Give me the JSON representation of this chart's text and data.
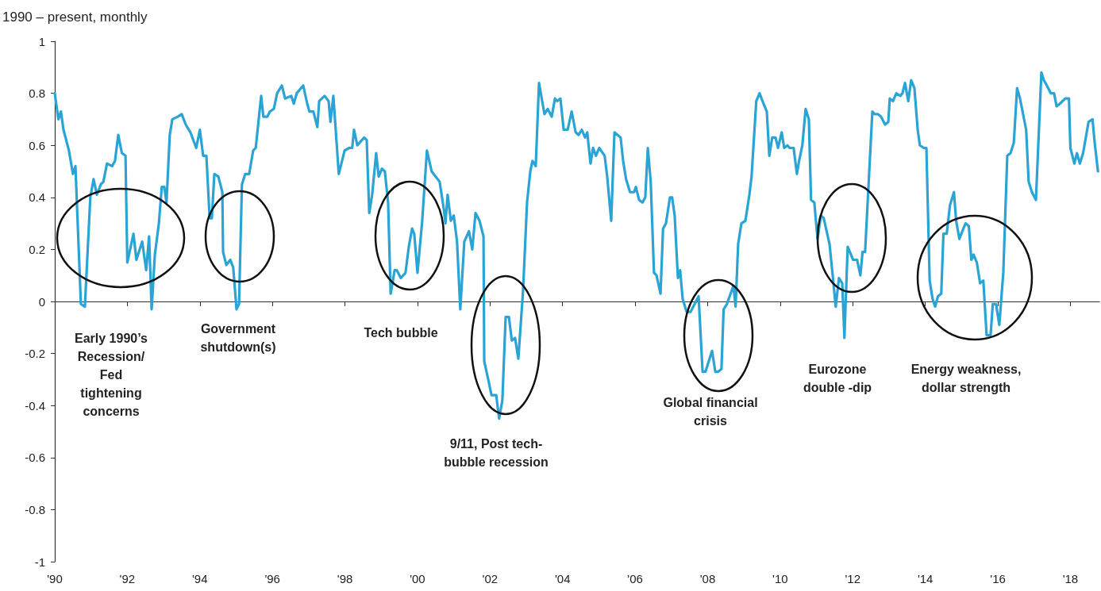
{
  "chart_data": {
    "type": "line",
    "ylabel": "1990 – present, monthly",
    "xlim": [
      1990,
      2018.8
    ],
    "ylim": [
      -1,
      1
    ],
    "xticks": [
      {
        "value": 1990,
        "label": "'90"
      },
      {
        "value": 1992,
        "label": "'92"
      },
      {
        "value": 1994,
        "label": "'94"
      },
      {
        "value": 1996,
        "label": "'96"
      },
      {
        "value": 1998,
        "label": "'98"
      },
      {
        "value": 2000,
        "label": "'00"
      },
      {
        "value": 2002,
        "label": "'02"
      },
      {
        "value": 2004,
        "label": "'04"
      },
      {
        "value": 2006,
        "label": "'06"
      },
      {
        "value": 2008,
        "label": "'08"
      },
      {
        "value": 2010,
        "label": "'10"
      },
      {
        "value": 2012,
        "label": "'12"
      },
      {
        "value": 2014,
        "label": "'14"
      },
      {
        "value": 2016,
        "label": "'16"
      },
      {
        "value": 2018,
        "label": "'18"
      }
    ],
    "yticks": [
      -1,
      -0.8,
      -0.6,
      -0.4,
      -0.2,
      0,
      0.2,
      0.4,
      0.6,
      0.8,
      1
    ],
    "marker": "none",
    "line_style": "solid",
    "series": [
      {
        "color": "#2aa4d5",
        "x": [
          1990.0,
          1990.1,
          1990.17,
          1990.24,
          1990.39,
          1990.5,
          1990.57,
          1990.72,
          1990.83,
          1990.98,
          1991.07,
          1991.16,
          1991.27,
          1991.34,
          1991.44,
          1991.58,
          1991.66,
          1991.75,
          1991.85,
          1991.95,
          1992.0,
          1992.17,
          1992.25,
          1992.41,
          1992.52,
          1992.6,
          1992.67,
          1992.76,
          1992.87,
          1992.95,
          1993.02,
          1993.08,
          1993.17,
          1993.24,
          1993.39,
          1993.5,
          1993.61,
          1993.74,
          1993.9,
          1994.0,
          1994.09,
          1994.18,
          1994.27,
          1994.33,
          1994.4,
          1994.51,
          1994.62,
          1994.64,
          1994.73,
          1994.84,
          1994.92,
          1995.01,
          1995.08,
          1995.16,
          1995.25,
          1995.36,
          1995.47,
          1995.54,
          1995.69,
          1995.75,
          1995.86,
          1995.93,
          1996.04,
          1996.13,
          1996.26,
          1996.35,
          1996.52,
          1996.59,
          1996.67,
          1996.85,
          1996.96,
          1997.02,
          1997.13,
          1997.24,
          1997.29,
          1997.44,
          1997.55,
          1997.6,
          1997.68,
          1997.83,
          1997.99,
          1998.12,
          1998.2,
          1998.25,
          1998.34,
          1998.53,
          1998.6,
          1998.67,
          1998.75,
          1998.86,
          1998.93,
          1999.02,
          1999.1,
          1999.19,
          1999.26,
          1999.37,
          1999.43,
          1999.54,
          1999.67,
          1999.76,
          1999.85,
          1999.91,
          2000.0,
          2000.13,
          2000.26,
          2000.39,
          2000.61,
          2000.72,
          2000.77,
          2000.83,
          2000.92,
          2001.0,
          2001.09,
          2001.18,
          2001.29,
          2001.42,
          2001.51,
          2001.6,
          2001.71,
          2001.82,
          2001.84,
          2001.95,
          2002.04,
          2002.17,
          2002.25,
          2002.34,
          2002.43,
          2002.52,
          2002.6,
          2002.69,
          2002.78,
          2002.91,
          2003.02,
          2003.11,
          2003.17,
          2003.26,
          2003.35,
          2003.5,
          2003.59,
          2003.7,
          2003.79,
          2003.85,
          2003.94,
          2004.03,
          2004.14,
          2004.25,
          2004.36,
          2004.44,
          2004.53,
          2004.62,
          2004.68,
          2004.77,
          2004.84,
          2004.92,
          2005.01,
          2005.16,
          2005.23,
          2005.34,
          2005.43,
          2005.6,
          2005.67,
          2005.75,
          2005.86,
          2005.97,
          2006.02,
          2006.11,
          2006.2,
          2006.28,
          2006.35,
          2006.43,
          2006.52,
          2006.59,
          2006.7,
          2006.77,
          2006.85,
          2006.96,
          2007.02,
          2007.09,
          2007.18,
          2007.24,
          2007.31,
          2007.42,
          2007.53,
          2007.64,
          2007.75,
          2007.86,
          2007.94,
          2008.12,
          2008.21,
          2008.29,
          2008.38,
          2008.44,
          2008.53,
          2008.71,
          2008.77,
          2008.84,
          2008.93,
          2009.04,
          2009.15,
          2009.21,
          2009.34,
          2009.43,
          2009.54,
          2009.63,
          2009.7,
          2009.78,
          2009.87,
          2009.94,
          2010.04,
          2010.11,
          2010.2,
          2010.26,
          2010.37,
          2010.46,
          2010.52,
          2010.61,
          2010.7,
          2010.79,
          2010.85,
          2010.94,
          2011.03,
          2011.12,
          2011.2,
          2011.36,
          2011.44,
          2011.53,
          2011.62,
          2011.71,
          2011.77,
          2011.86,
          2011.95,
          2012.01,
          2012.12,
          2012.21,
          2012.27,
          2012.34,
          2012.54,
          2012.6,
          2012.69,
          2012.78,
          2012.89,
          2012.98,
          2013.02,
          2013.11,
          2013.2,
          2013.31,
          2013.37,
          2013.44,
          2013.53,
          2013.61,
          2013.7,
          2013.79,
          2013.85,
          2013.96,
          2014.03,
          2014.12,
          2014.2,
          2014.27,
          2014.35,
          2014.44,
          2014.5,
          2014.59,
          2014.68,
          2014.79,
          2014.85,
          2014.94,
          2015.05,
          2015.11,
          2015.2,
          2015.27,
          2015.33,
          2015.42,
          2015.51,
          2015.6,
          2015.69,
          2015.8,
          2015.86,
          2015.95,
          2016.04,
          2016.15,
          2016.26,
          2016.35,
          2016.44,
          2016.53,
          2016.61,
          2016.78,
          2016.85,
          2016.94,
          2017.05,
          2017.2,
          2017.27,
          2017.35,
          2017.46,
          2017.55,
          2017.62,
          2017.71,
          2017.86,
          2017.96,
          2018.0,
          2018.11,
          2018.18,
          2018.26,
          2018.35,
          2018.5,
          2018.61,
          2018.67,
          2018.76
        ],
        "values": [
          0.8,
          0.7,
          0.73,
          0.66,
          0.58,
          0.49,
          0.52,
          -0.01,
          -0.02,
          0.4,
          0.47,
          0.41,
          0.45,
          0.46,
          0.53,
          0.52,
          0.54,
          0.64,
          0.57,
          0.56,
          0.15,
          0.26,
          0.16,
          0.23,
          0.12,
          0.25,
          -0.03,
          0.18,
          0.3,
          0.44,
          0.44,
          0.38,
          0.64,
          0.7,
          0.71,
          0.72,
          0.68,
          0.65,
          0.59,
          0.66,
          0.56,
          0.56,
          0.32,
          0.32,
          0.49,
          0.48,
          0.42,
          0.19,
          0.14,
          0.16,
          0.13,
          -0.03,
          -0.01,
          0.45,
          0.49,
          0.49,
          0.58,
          0.59,
          0.79,
          0.71,
          0.71,
          0.73,
          0.74,
          0.8,
          0.83,
          0.78,
          0.79,
          0.76,
          0.8,
          0.83,
          0.76,
          0.73,
          0.73,
          0.67,
          0.77,
          0.79,
          0.77,
          0.69,
          0.79,
          0.49,
          0.58,
          0.59,
          0.59,
          0.66,
          0.6,
          0.63,
          0.62,
          0.34,
          0.41,
          0.57,
          0.48,
          0.51,
          0.5,
          0.38,
          0.03,
          0.12,
          0.12,
          0.09,
          0.11,
          0.21,
          0.28,
          0.26,
          0.11,
          0.31,
          0.58,
          0.5,
          0.46,
          0.36,
          0.3,
          0.41,
          0.31,
          0.33,
          0.23,
          -0.03,
          0.23,
          0.27,
          0.2,
          0.34,
          0.31,
          0.25,
          -0.23,
          -0.3,
          -0.36,
          -0.36,
          -0.45,
          -0.38,
          -0.06,
          -0.06,
          -0.15,
          -0.14,
          -0.22,
          0.04,
          0.38,
          0.5,
          0.54,
          0.52,
          0.84,
          0.72,
          0.74,
          0.71,
          0.78,
          0.77,
          0.78,
          0.66,
          0.66,
          0.73,
          0.65,
          0.64,
          0.66,
          0.63,
          0.65,
          0.53,
          0.59,
          0.56,
          0.59,
          0.56,
          0.48,
          0.31,
          0.65,
          0.63,
          0.54,
          0.47,
          0.42,
          0.42,
          0.44,
          0.39,
          0.38,
          0.4,
          0.59,
          0.46,
          0.11,
          0.1,
          0.03,
          0.28,
          0.3,
          0.4,
          0.4,
          0.33,
          0.09,
          0.12,
          0.01,
          -0.04,
          -0.04,
          -0.01,
          0.02,
          -0.27,
          -0.27,
          -0.19,
          -0.27,
          -0.27,
          -0.26,
          -0.03,
          -0.01,
          0.06,
          -0.02,
          0.22,
          0.3,
          0.31,
          0.41,
          0.48,
          0.77,
          0.8,
          0.76,
          0.73,
          0.56,
          0.63,
          0.63,
          0.59,
          0.65,
          0.59,
          0.6,
          0.59,
          0.59,
          0.49,
          0.54,
          0.6,
          0.74,
          0.7,
          0.39,
          0.38,
          0.24,
          0.33,
          0.32,
          0.22,
          0.11,
          -0.02,
          0.09,
          0.07,
          -0.14,
          0.21,
          0.18,
          0.16,
          0.16,
          0.1,
          0.19,
          0.19,
          0.73,
          0.72,
          0.72,
          0.71,
          0.68,
          0.69,
          0.78,
          0.77,
          0.8,
          0.79,
          0.8,
          0.84,
          0.77,
          0.85,
          0.82,
          0.66,
          0.6,
          0.59,
          0.59,
          0.08,
          0.01,
          -0.02,
          0.02,
          0.03,
          0.26,
          0.26,
          0.37,
          0.42,
          0.31,
          0.24,
          0.28,
          0.3,
          0.29,
          0.16,
          0.18,
          0.15,
          0.07,
          0.08,
          -0.13,
          -0.13,
          -0.01,
          -0.01,
          -0.09,
          0.11,
          0.56,
          0.57,
          0.61,
          0.82,
          0.78,
          0.66,
          0.46,
          0.42,
          0.39,
          0.88,
          0.85,
          0.83,
          0.8,
          0.8,
          0.75,
          0.76,
          0.78,
          0.78,
          0.59,
          0.53,
          0.57,
          0.53,
          0.57,
          0.69,
          0.7,
          0.61,
          0.5
        ]
      }
    ],
    "annotations": [
      "Early 1990’s\nRecession/\nFed\ntightening\nconcerns",
      "Government\nshutdown(s)",
      "Tech bubble",
      "9/11, Post tech-\nbubble recession",
      "Global financial\ncrisis",
      "Eurozone\ndouble -dip",
      "Energy weakness,\ndollar strength"
    ]
  }
}
